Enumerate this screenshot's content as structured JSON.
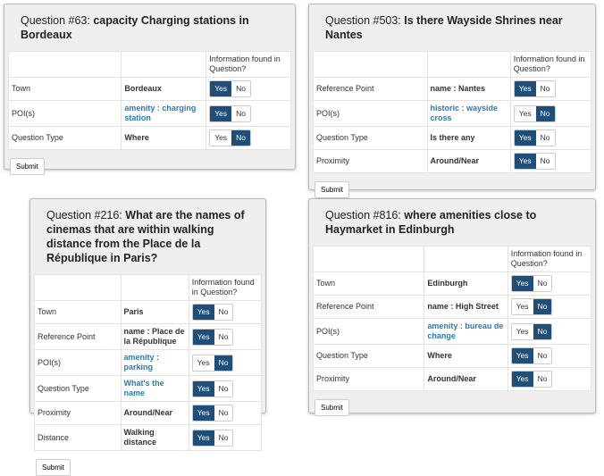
{
  "labels": {
    "header": "Information found in Question?",
    "yes": "Yes",
    "no": "No",
    "submit": "Submit"
  },
  "panels": [
    {
      "prefix": "Question #63:",
      "text": "capacity Charging stations in Bordeaux",
      "rows": [
        {
          "label": "Town",
          "value": "Bordeaux",
          "link": false,
          "found": true
        },
        {
          "label": "POI(s)",
          "value": "amenity : charging station",
          "link": true,
          "found": true
        },
        {
          "label": "Question Type",
          "value": "Where",
          "link": false,
          "found": false
        }
      ]
    },
    {
      "prefix": "Question #503:",
      "text": "Is there Wayside Shrines near Nantes",
      "rows": [
        {
          "label": "Reference Point",
          "value": "name : Nantes",
          "link": false,
          "found": true
        },
        {
          "label": "POI(s)",
          "value": "historic : wayside cross",
          "link": true,
          "found": false
        },
        {
          "label": "Question Type",
          "value": "Is there any",
          "link": false,
          "found": true
        },
        {
          "label": "Proximity",
          "value": "Around/Near",
          "link": false,
          "found": true
        }
      ]
    },
    {
      "prefix": "Question #216:",
      "text": "What are the names of cinemas that are within walking distance from the Place de la République in Paris?",
      "rows": [
        {
          "label": "Town",
          "value": "Paris",
          "link": false,
          "found": true
        },
        {
          "label": "Reference Point",
          "value": "name : Place de la République",
          "link": false,
          "found": true
        },
        {
          "label": "POI(s)",
          "value": "amenity : parking",
          "link": true,
          "found": false
        },
        {
          "label": "Question Type",
          "value": "What's the name",
          "link": true,
          "found": true
        },
        {
          "label": "Proximity",
          "value": "Around/Near",
          "link": false,
          "found": true
        },
        {
          "label": "Distance",
          "value": "Walking distance",
          "link": false,
          "found": true
        }
      ]
    },
    {
      "prefix": "Question #816:",
      "text": "where amenities close to Haymarket in Edinburgh",
      "rows": [
        {
          "label": "Town",
          "value": "Edinburgh",
          "link": false,
          "found": true
        },
        {
          "label": "Reference Point",
          "value": "name : High Street",
          "link": false,
          "found": false
        },
        {
          "label": "POI(s)",
          "value": "amenity : bureau de change",
          "link": true,
          "found": false
        },
        {
          "label": "Question Type",
          "value": "Where",
          "link": false,
          "found": true
        },
        {
          "label": "Proximity",
          "value": "Around/Near",
          "link": false,
          "found": true
        }
      ]
    }
  ]
}
